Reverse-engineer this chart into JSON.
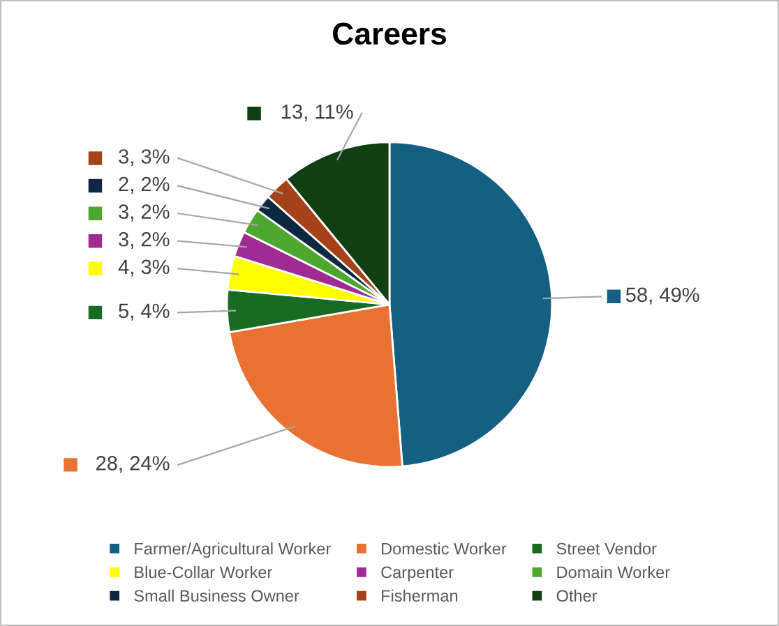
{
  "chart_data": {
    "type": "pie",
    "title": "Careers",
    "categories": [
      "Farmer/Agricultural Worker",
      "Domestic Worker",
      "Street Vendor",
      "Blue-Collar Worker",
      "Carpenter",
      "Domain Worker",
      "Small Business Owner",
      "Fisherman",
      "Other"
    ],
    "values": [
      58,
      28,
      5,
      4,
      3,
      3,
      2,
      3,
      13
    ],
    "colors": [
      "#156082",
      "#e97132",
      "#196b24",
      "#ffff00",
      "#a02b93",
      "#4ea72e",
      "#0e2841",
      "#a5421a",
      "#0f3f12"
    ],
    "value_labels": [
      "58, 49%",
      "28, 24%",
      "5, 4%",
      "4, 3%",
      "3, 2%",
      "3, 2%",
      "2, 2%",
      "3, 3%",
      "13, 11%"
    ],
    "legend": "bottom"
  }
}
